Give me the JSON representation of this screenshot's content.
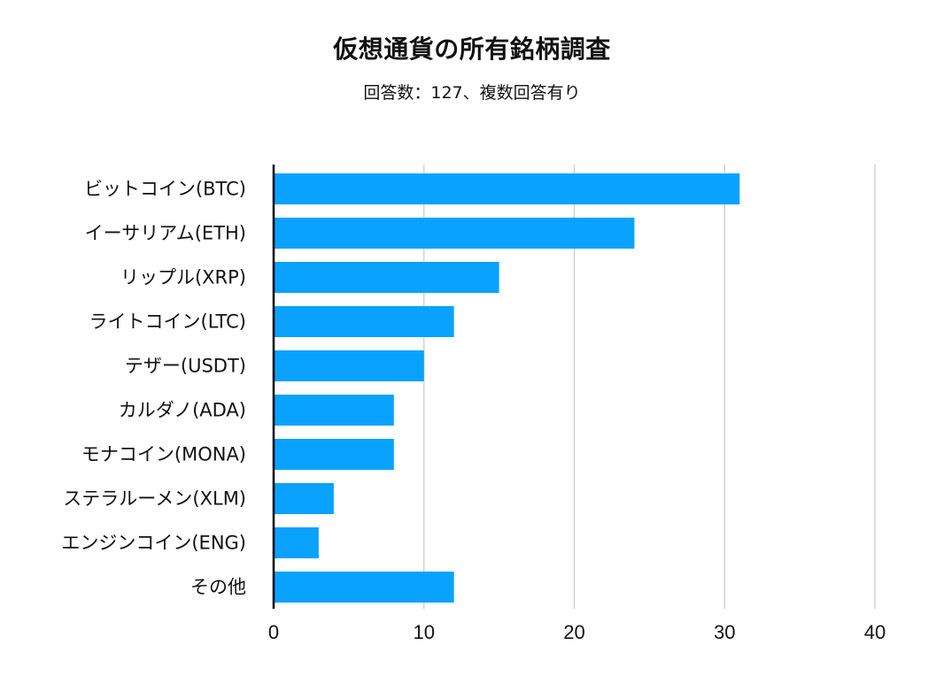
{
  "chart_data": {
    "type": "bar",
    "orientation": "horizontal",
    "title": "仮想通貨の所有銘柄調査",
    "subtitle": "回答数：127、複数回答有り",
    "categories": [
      "ビットコイン(BTC)",
      "イーサリアム(ETH)",
      "リップル(XRP)",
      "ライトコイン(LTC)",
      "テザー(USDT)",
      "カルダノ(ADA)",
      "モナコイン(MONA)",
      "ステラルーメン(XLM)",
      "エンジンコイン(ENG)",
      "その他"
    ],
    "values": [
      31,
      24,
      15,
      12,
      10,
      8,
      8,
      4,
      3,
      12
    ],
    "xlim": [
      0,
      40
    ],
    "xticks": [
      0,
      10,
      20,
      30,
      40
    ],
    "xlabel": "",
    "ylabel": "",
    "grid": "vertical",
    "legend": "none",
    "bar_color": "#0aa2ff",
    "grid_color": "#c8c8c8",
    "axis_color": "#000000"
  }
}
